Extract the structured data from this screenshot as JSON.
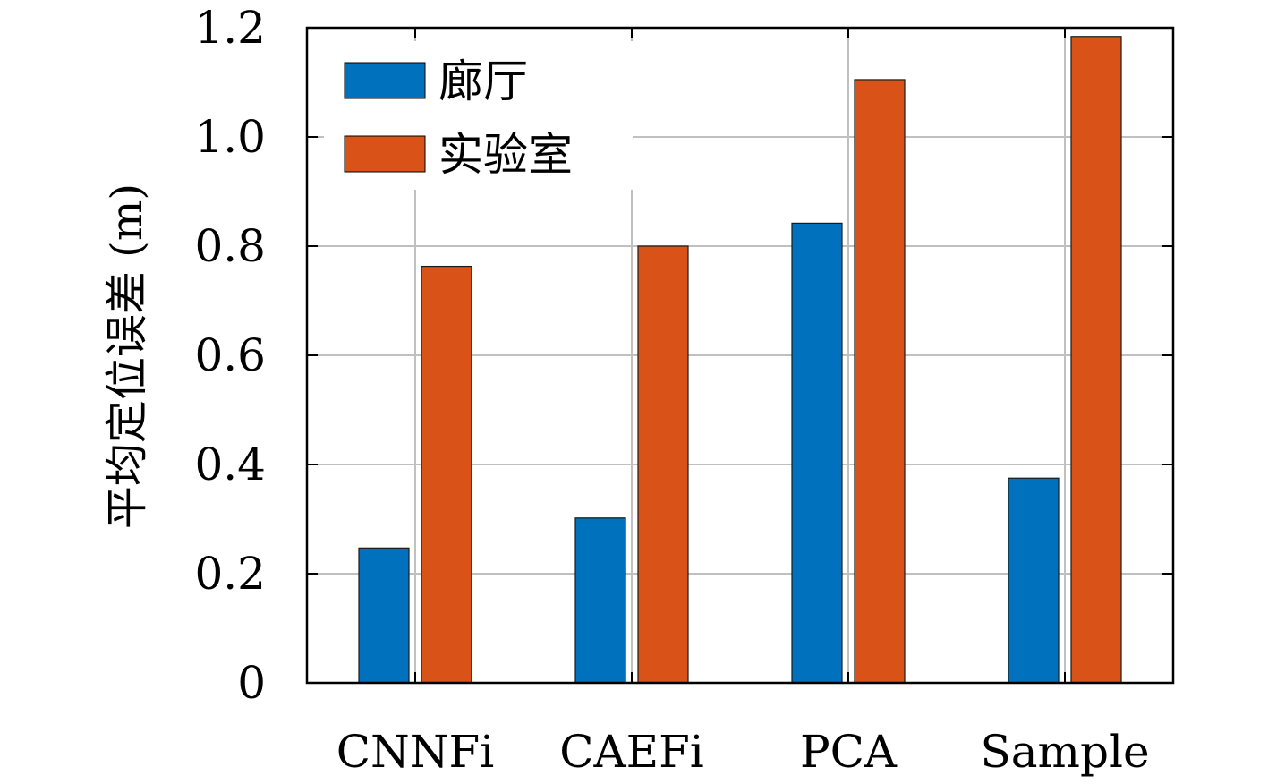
{
  "chart_data": {
    "type": "bar",
    "title": "",
    "xlabel": "",
    "ylabel": "平均定位误差 (m)",
    "ylim": [
      0,
      1.2
    ],
    "yticks": [
      "0",
      "0.2",
      "0.4",
      "0.6",
      "0.8",
      "1.0",
      "1.2"
    ],
    "ytick_values": [
      0,
      0.2,
      0.4,
      0.6,
      0.8,
      1.0,
      1.2
    ],
    "categories": [
      "CNNFi",
      "CAEFi",
      "PCA",
      "Sample"
    ],
    "series": [
      {
        "name": "廊厅",
        "color": "#0072BD",
        "values": [
          0.247,
          0.302,
          0.842,
          0.375
        ]
      },
      {
        "name": "实验室",
        "color": "#D95319",
        "values": [
          0.763,
          0.8,
          1.105,
          1.184
        ]
      }
    ],
    "grid": true,
    "legend_position": "top-left"
  }
}
